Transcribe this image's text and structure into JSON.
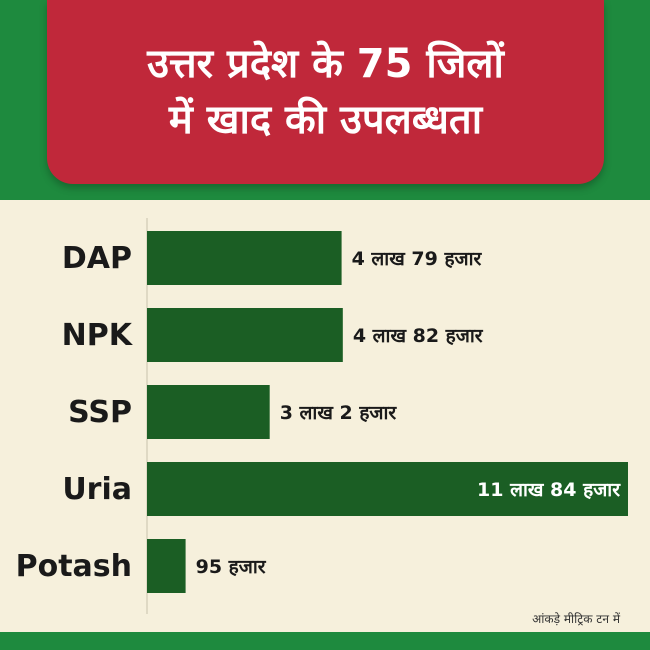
{
  "title": {
    "line1": "उत्तर प्रदेश के 75 जिलों",
    "line2": "में खाद की उपलब्धता"
  },
  "footnote": "आंकड़े मीट्रिक टन में",
  "colors": {
    "background": "#1e8a3e",
    "title_box": "#c0283a",
    "panel": "#f6f0dc",
    "bar": "#1b5e24"
  },
  "chart_data": {
    "type": "bar",
    "orientation": "horizontal",
    "categories": [
      "DAP",
      "NPK",
      "SSP",
      "Uria",
      "Potash"
    ],
    "values": [
      479000,
      482000,
      302000,
      1184000,
      95000
    ],
    "value_labels": [
      "4 लाख 79 हजार",
      "4 लाख 82 हजार",
      "3 लाख 2 हजार",
      "11 लाख 84 हजार",
      "95 हजार"
    ],
    "unit_note": "आंकड़े मीट्रिक टन में"
  }
}
